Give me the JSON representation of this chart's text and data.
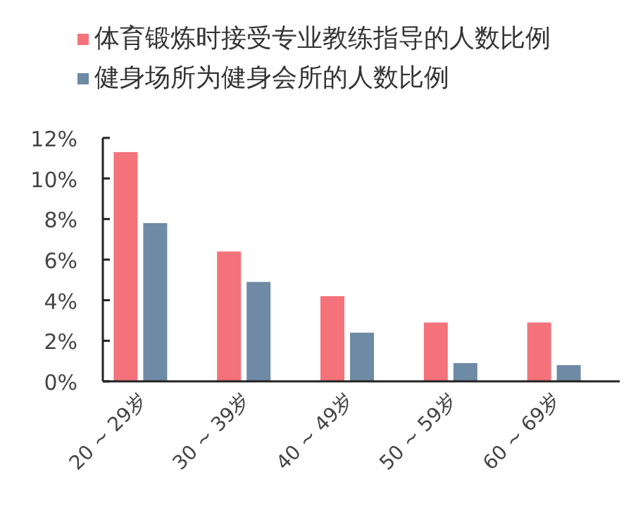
{
  "chart_data": {
    "type": "bar",
    "categories": [
      "20 ~ 29岁",
      "30 ~ 39岁",
      "40 ~ 49岁",
      "50 ~ 59岁",
      "60 ~ 69岁"
    ],
    "series": [
      {
        "name": "体育锻炼时接受专业教练指导的人数比例",
        "color": "#f4727a",
        "values": [
          11.3,
          6.4,
          4.2,
          2.9,
          2.9
        ]
      },
      {
        "name": "健身场所为健身会所的人数比例",
        "color": "#6e8aa5",
        "values": [
          7.8,
          4.9,
          2.4,
          0.9,
          0.8
        ]
      }
    ],
    "ylim": [
      0,
      12
    ],
    "yticks": [
      {
        "value": 0,
        "label": "0%"
      },
      {
        "value": 2,
        "label": "2%"
      },
      {
        "value": 4,
        "label": "4%"
      },
      {
        "value": 6,
        "label": "6%"
      },
      {
        "value": 8,
        "label": "8%"
      },
      {
        "value": 10,
        "label": "10%"
      },
      {
        "value": 12,
        "label": "12%"
      }
    ],
    "legend": "top",
    "grid": false
  }
}
